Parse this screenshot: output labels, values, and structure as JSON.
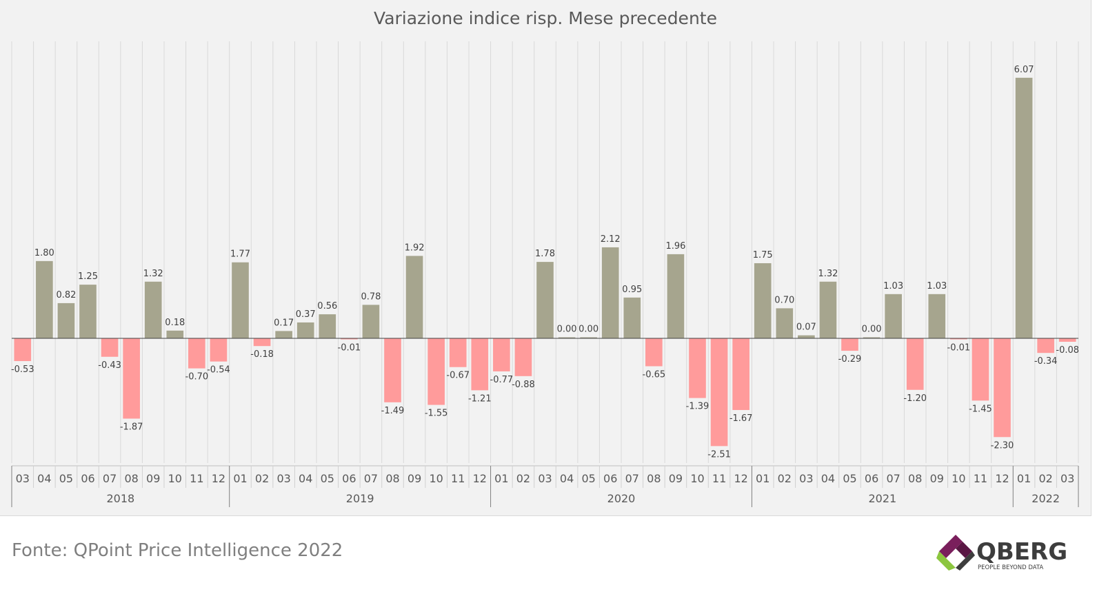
{
  "chart_data": {
    "type": "bar",
    "title": "Variazione indice risp. Mese precedente",
    "xlabel": "",
    "ylabel": "",
    "ylim": [
      -3.2,
      7.6
    ],
    "grid": "vertical",
    "positive_color": "#a6a58e",
    "negative_color": "#ff9b9b",
    "categories": [
      "03",
      "04",
      "05",
      "06",
      "07",
      "08",
      "09",
      "10",
      "11",
      "12",
      "01",
      "02",
      "03",
      "04",
      "05",
      "06",
      "07",
      "08",
      "09",
      "10",
      "11",
      "12",
      "01",
      "02",
      "03",
      "04",
      "05",
      "06",
      "07",
      "08",
      "09",
      "10",
      "11",
      "12",
      "01",
      "02",
      "03",
      "04",
      "05",
      "06",
      "07",
      "08",
      "09",
      "10",
      "11",
      "12",
      "01",
      "02",
      "03"
    ],
    "values": [
      -0.53,
      1.8,
      0.82,
      1.25,
      -0.43,
      -1.87,
      1.32,
      0.18,
      -0.7,
      -0.54,
      1.77,
      -0.18,
      0.17,
      0.37,
      0.56,
      -0.01,
      0.78,
      -1.49,
      1.92,
      -1.55,
      -0.67,
      -1.21,
      -0.77,
      -0.88,
      1.78,
      0.0,
      0.0,
      2.12,
      0.95,
      -0.65,
      1.96,
      -1.39,
      -2.51,
      -1.67,
      1.75,
      0.7,
      0.07,
      1.32,
      -0.29,
      0.0,
      1.03,
      -1.2,
      1.03,
      -0.01,
      -1.45,
      -2.3,
      6.07,
      -0.34,
      -0.08
    ],
    "value_labels": [
      "-0.53",
      "1.80",
      "0.82",
      "1.25",
      "-0.43",
      "-1.87",
      "1.32",
      "0.18",
      "-0.70",
      "-0.54",
      "1.77",
      "-0.18",
      "0.17",
      "0.37",
      "0.56",
      "-0.01",
      "0.78",
      "-1.49",
      "1.92",
      "-1.55",
      "-0.67",
      "-1.21",
      "-0.77",
      "-0.88",
      "1.78",
      "0.00",
      "0.00",
      "2.12",
      "0.95",
      "-0.65",
      "1.96",
      "-1.39",
      "-2.51",
      "-1.67",
      "1.75",
      "0.70",
      "0.07",
      "1.32",
      "-0.29",
      "0.00",
      "1.03",
      "-1.20",
      "1.03",
      "-0.01",
      "-1.45",
      "-2.30",
      "6.07",
      "-0.34",
      "-0.08"
    ],
    "year_groups": [
      {
        "label": "2018",
        "count": 10
      },
      {
        "label": "2019",
        "count": 12
      },
      {
        "label": "2020",
        "count": 12
      },
      {
        "label": "2021",
        "count": 12
      },
      {
        "label": "2022",
        "count": 3
      }
    ]
  },
  "source": "Fonte: QPoint Price Intelligence 2022",
  "logo": {
    "name": "QBERG",
    "tagline": "PEOPLE BEYOND DATA",
    "colors": [
      "#8cc63f",
      "#7a1f5c",
      "#3d3d3d"
    ]
  }
}
